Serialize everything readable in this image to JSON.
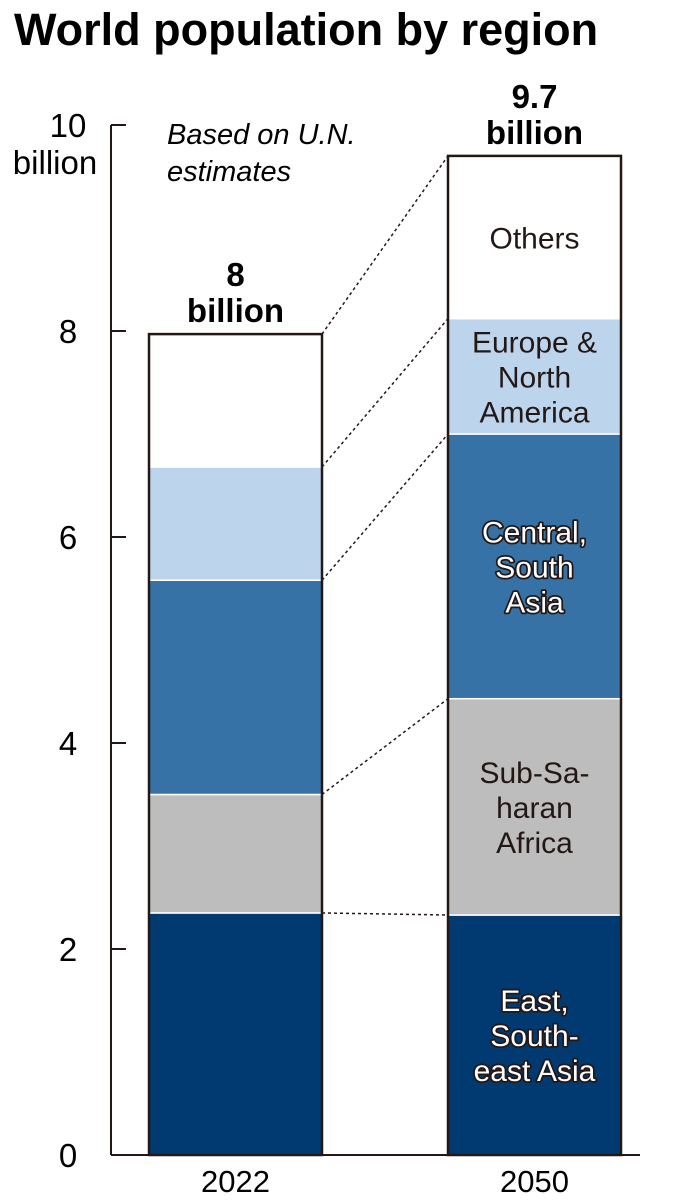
{
  "chart_data": {
    "type": "bar",
    "stacked": true,
    "title": "World population by region",
    "note": [
      "Based on U.N.",
      "estimates"
    ],
    "yunit": "billion",
    "ylim": [
      0,
      10
    ],
    "yticks": [
      0,
      2,
      4,
      6,
      8,
      10
    ],
    "categories": [
      "2022",
      "2050"
    ],
    "totals": [
      [
        "8",
        "billion"
      ],
      [
        "9.7",
        "billion"
      ]
    ],
    "series": [
      {
        "name": "East, South-east Asia",
        "label_lines": [
          "East,",
          "South-",
          "east Asia"
        ],
        "color": "#003a70",
        "values": [
          2.35,
          2.33
        ]
      },
      {
        "name": "Sub-Saharan Africa",
        "label_lines": [
          "Sub-Sa-",
          "haran",
          "Africa"
        ],
        "color": "#bdbdbd",
        "values": [
          1.15,
          2.1
        ]
      },
      {
        "name": "Central, South Asia",
        "label_lines": [
          "Central,",
          "South",
          "Asia"
        ],
        "color": "#3672a6",
        "values": [
          2.08,
          2.57
        ]
      },
      {
        "name": "Europe & North America",
        "label_lines": [
          "Europe &",
          "North",
          "America"
        ],
        "color": "#bdd4ed",
        "values": [
          1.1,
          1.12
        ]
      },
      {
        "name": "Others",
        "label_lines": [
          "Others"
        ],
        "color": "#ffffff",
        "values": [
          1.29,
          1.58
        ]
      }
    ]
  }
}
